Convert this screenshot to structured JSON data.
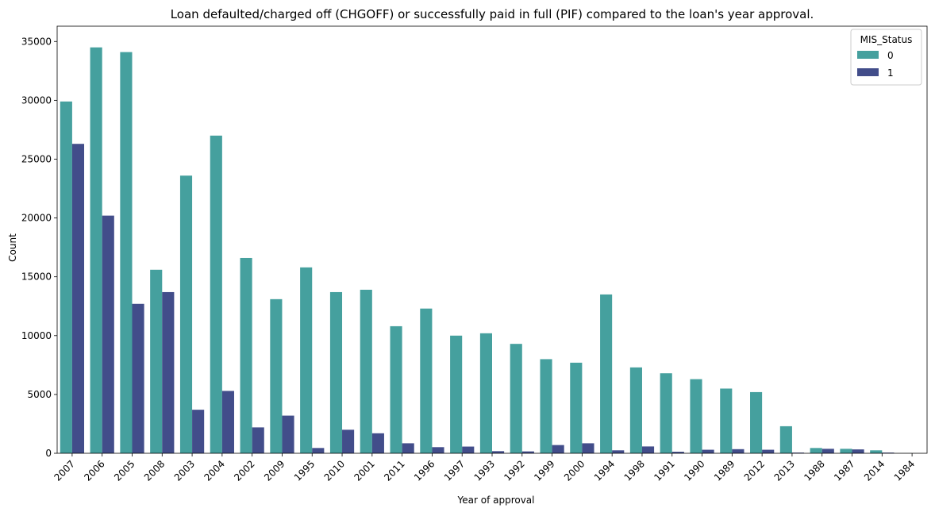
{
  "chart_data": {
    "type": "bar",
    "title": "Loan defaulted/charged off (CHGOFF) or successfully paid in full (PIF) compared to the loan's year approval.",
    "xlabel": "Year of approval",
    "ylabel": "Count",
    "ylim": [
      0,
      36300
    ],
    "yticks": [
      0,
      5000,
      10000,
      15000,
      20000,
      25000,
      30000,
      35000
    ],
    "grid": false,
    "legend_placement": "top-right",
    "legend_title": "MIS_Status",
    "categories": [
      "2007",
      "2006",
      "2005",
      "2008",
      "2003",
      "2004",
      "2002",
      "2009",
      "1995",
      "2010",
      "2001",
      "2011",
      "1996",
      "1997",
      "1993",
      "1992",
      "1999",
      "2000",
      "1994",
      "1998",
      "1991",
      "1990",
      "1989",
      "2012",
      "2013",
      "1988",
      "1987",
      "2014",
      "1984"
    ],
    "series": [
      {
        "name": "0",
        "color": "#45a09e",
        "values": [
          29900,
          34500,
          34100,
          15600,
          23600,
          27000,
          16600,
          13100,
          15800,
          13700,
          13900,
          10800,
          12300,
          10000,
          10200,
          9300,
          8000,
          7700,
          13500,
          7300,
          6800,
          6300,
          5500,
          5200,
          2300,
          450,
          380,
          250,
          10
        ]
      },
      {
        "name": "1",
        "color": "#424d8a",
        "values": [
          26300,
          20200,
          12700,
          13700,
          3700,
          5300,
          2200,
          3200,
          450,
          2000,
          1700,
          850,
          520,
          570,
          180,
          160,
          700,
          850,
          250,
          580,
          130,
          300,
          350,
          300,
          60,
          380,
          330,
          60,
          0
        ]
      }
    ]
  }
}
